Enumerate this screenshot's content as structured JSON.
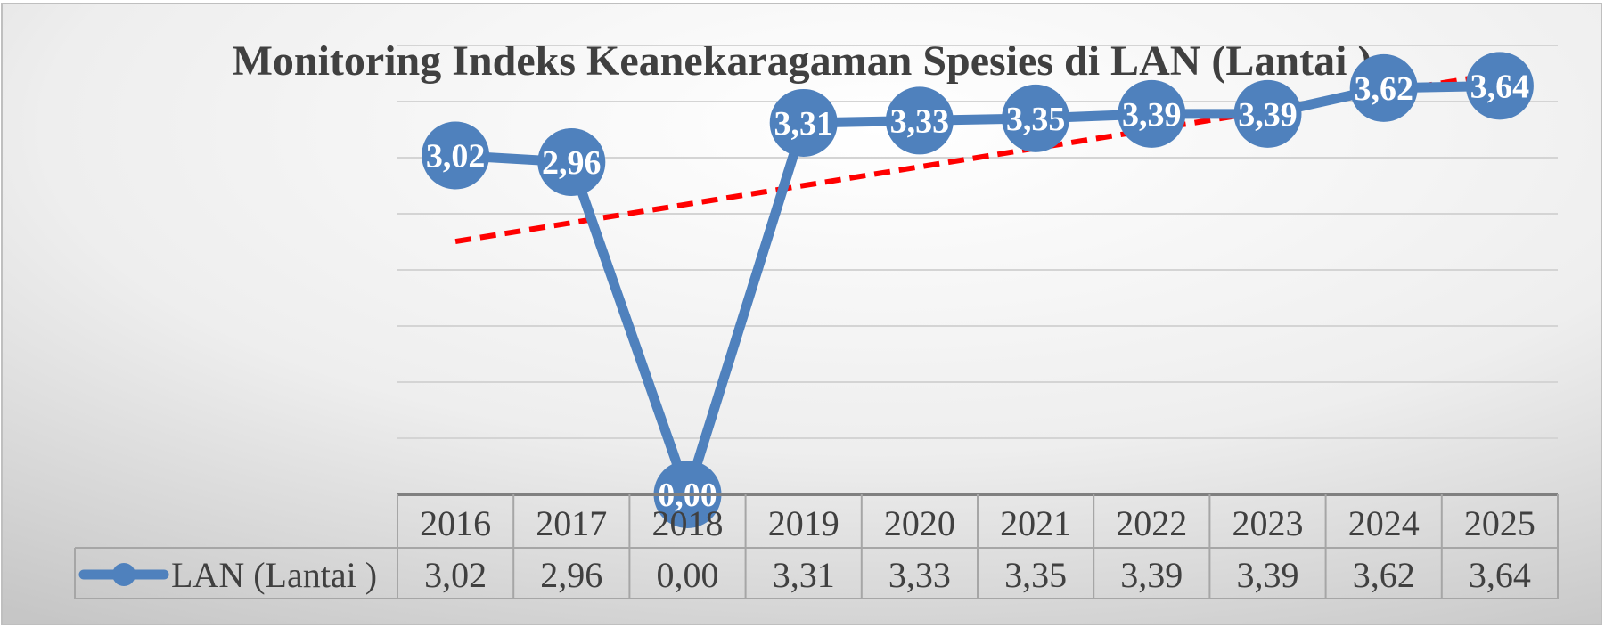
{
  "chart_data": {
    "type": "line",
    "title": "Monitoring Indeks Keanekaragaman Spesies di LAN (Lantai )",
    "categories": [
      "2016",
      "2017",
      "2018",
      "2019",
      "2020",
      "2021",
      "2022",
      "2023",
      "2024",
      "2025"
    ],
    "series": [
      {
        "name": "LAN (Lantai )",
        "values": [
          3.02,
          2.96,
          0.0,
          3.31,
          3.33,
          3.35,
          3.39,
          3.39,
          3.62,
          3.64
        ],
        "labels": [
          "3,02",
          "2,96",
          "0,00",
          "3,31",
          "3,33",
          "3,35",
          "3,39",
          "3,39",
          "3,62",
          "3,64"
        ],
        "color": "#4F81BD"
      }
    ],
    "trendline": {
      "type": "linear",
      "color": "#FF0000",
      "style": "dashed"
    },
    "ylim": [
      0,
      4
    ],
    "grid": true,
    "data_table": true,
    "xlabel": "",
    "ylabel": ""
  }
}
